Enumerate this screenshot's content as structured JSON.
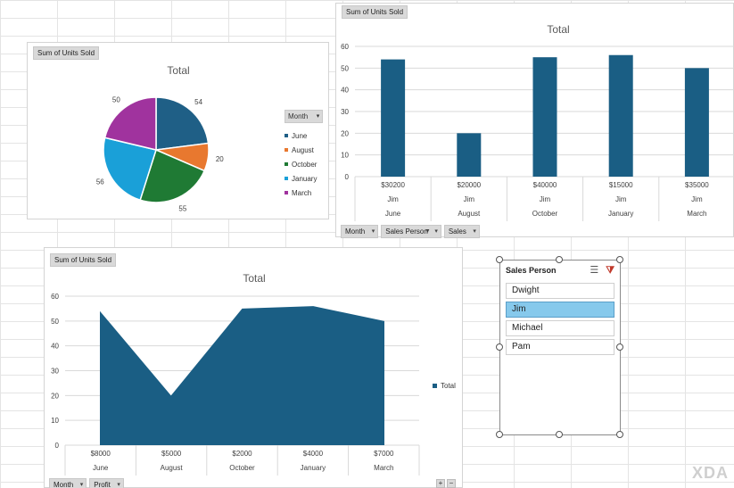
{
  "pie_panel": {
    "field_label": "Sum of Units Sold",
    "legend_title": "Month",
    "chart_data": {
      "type": "pie",
      "title": "Total",
      "categories": [
        "June",
        "August",
        "October",
        "January",
        "March"
      ],
      "values": [
        54,
        20,
        55,
        56,
        50
      ],
      "colors": [
        "#1f5f86",
        "#e8782f",
        "#1f7a34",
        "#1aa0d8",
        "#a0339e"
      ],
      "legend_position": "right"
    }
  },
  "bar_panel": {
    "field_label": "Sum of Units Sold",
    "bottom_buttons": [
      {
        "label": "Month",
        "filter": false
      },
      {
        "label": "Sales Person",
        "filter": true
      },
      {
        "label": "Sales",
        "filter": false
      }
    ],
    "chart_data": {
      "type": "bar",
      "title": "Total",
      "categories": [
        {
          "outer": "June",
          "mid": "Jim",
          "inner": "$30200"
        },
        {
          "outer": "August",
          "mid": "Jim",
          "inner": "$20000"
        },
        {
          "outer": "October",
          "mid": "Jim",
          "inner": "$40000"
        },
        {
          "outer": "January",
          "mid": "Jim",
          "inner": "$15000"
        },
        {
          "outer": "March",
          "mid": "Jim",
          "inner": "$35000"
        }
      ],
      "values": [
        54,
        20,
        55,
        56,
        50
      ],
      "ylim": [
        0,
        60
      ],
      "yticks": [
        0,
        10,
        20,
        30,
        40,
        50,
        60
      ],
      "color": "#1a5e84",
      "grid": true
    }
  },
  "area_panel": {
    "field_label": "Sum of Units Sold",
    "bottom_buttons": [
      {
        "label": "Month",
        "filter": false
      },
      {
        "label": "Profit",
        "filter": false
      }
    ],
    "legend_label": "Total",
    "chart_data": {
      "type": "area",
      "title": "Total",
      "categories": [
        {
          "outer": "June",
          "inner": "$8000"
        },
        {
          "outer": "August",
          "inner": "$5000"
        },
        {
          "outer": "October",
          "inner": "$2000"
        },
        {
          "outer": "January",
          "inner": "$4000"
        },
        {
          "outer": "March",
          "inner": "$7000"
        }
      ],
      "values": [
        54,
        20,
        55,
        56,
        50
      ],
      "ylim": [
        0,
        60
      ],
      "yticks": [
        0,
        10,
        20,
        30,
        40,
        50,
        60
      ],
      "color": "#1a5e84",
      "grid": true,
      "legend_position": "right"
    }
  },
  "slicer": {
    "title": "Sales Person",
    "multiselect_icon": "multiselect-icon",
    "clear_filter_icon": "clear-filter-icon",
    "items": [
      {
        "label": "Dwight",
        "selected": false
      },
      {
        "label": "Jim",
        "selected": true
      },
      {
        "label": "Michael",
        "selected": false
      },
      {
        "label": "Pam",
        "selected": false
      }
    ]
  },
  "zoom": {
    "plus": "+",
    "minus": "−"
  },
  "watermark": "XDA"
}
